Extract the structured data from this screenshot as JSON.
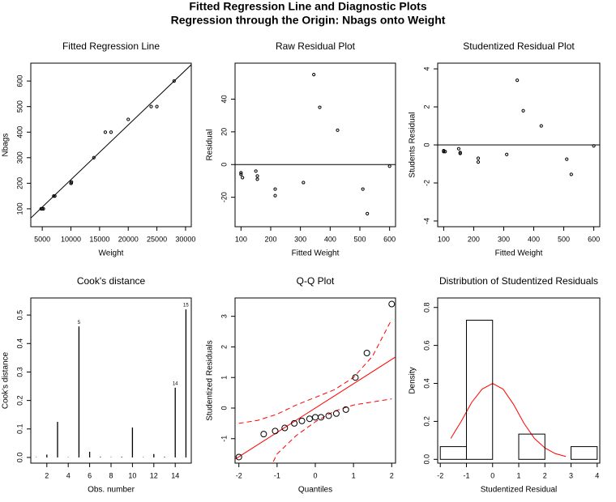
{
  "title": "Fitted Regression Line and Diagnostic Plots",
  "subtitle": "Regression through the Origin: Nbags onto Weight",
  "chart_data": [
    {
      "type": "scatter",
      "title": "Fitted Regression Line",
      "x_label": "Weight",
      "y_label": "Nbags",
      "marker": "point",
      "color": "#000000",
      "x": [
        5000,
        7200,
        10000,
        10100,
        14000,
        16000,
        17000,
        20000,
        24000,
        25000,
        28000,
        4800,
        7000,
        5200,
        10050
      ],
      "y": [
        100,
        150,
        200,
        205,
        300,
        400,
        400,
        450,
        500,
        500,
        600,
        100,
        150,
        100,
        200
      ],
      "lines": [
        {
          "x": [
            3000,
            31000
          ],
          "y": [
            64,
            664
          ],
          "color": "#000000",
          "dash": false
        }
      ],
      "xlim": [
        3000,
        31000
      ],
      "ylim": [
        30,
        670
      ],
      "xticks": [
        5000,
        10000,
        15000,
        20000,
        25000,
        30000
      ],
      "yticks": [
        100,
        200,
        300,
        400,
        500,
        600
      ]
    },
    {
      "type": "scatter",
      "title": "Raw Residual Plot",
      "x_label": "Fitted Weight",
      "y_label": "Residual",
      "marker": "point",
      "color": "#000000",
      "x": [
        100,
        105,
        150,
        155,
        155,
        215,
        215,
        310,
        345,
        365,
        425,
        510,
        525,
        600,
        100
      ],
      "y": [
        -5,
        -8,
        -4,
        -7,
        -9,
        -15,
        -19,
        -11,
        55,
        35,
        21,
        -15,
        -30,
        -1,
        -6
      ],
      "hline": 0,
      "xlim": [
        80,
        620
      ],
      "ylim": [
        -38,
        62
      ],
      "xticks": [
        100,
        200,
        300,
        400,
        500,
        600
      ],
      "yticks": [
        -20,
        0,
        20,
        40
      ]
    },
    {
      "type": "scatter",
      "title": "Studentized Residual Plot",
      "x_label": "Fitted Weight",
      "y_label": "Students Residual",
      "marker": "point",
      "color": "#000000",
      "x": [
        100,
        105,
        150,
        155,
        155,
        215,
        215,
        310,
        345,
        365,
        425,
        510,
        525,
        600,
        100
      ],
      "y": [
        -0.3,
        -0.35,
        -0.2,
        -0.4,
        -0.45,
        -0.7,
        -0.9,
        -0.5,
        3.4,
        1.8,
        1.0,
        -0.75,
        -1.55,
        -0.05,
        -0.35
      ],
      "hline": 0,
      "xlim": [
        80,
        620
      ],
      "ylim": [
        -4.3,
        4.3
      ],
      "xticks": [
        100,
        200,
        300,
        400,
        500,
        600
      ],
      "yticks": [
        -4,
        -2,
        0,
        2,
        4
      ]
    },
    {
      "type": "stem",
      "title": "Cook's distance",
      "x_label": "Obs. number",
      "y_label": "Cook's distance",
      "color": "#000000",
      "x": [
        1,
        2,
        3,
        4,
        5,
        6,
        7,
        8,
        9,
        10,
        11,
        12,
        13,
        14,
        15
      ],
      "values": [
        0.001,
        0.01,
        0.125,
        0.001,
        0.46,
        0.02,
        0.002,
        0.001,
        0.002,
        0.105,
        0.001,
        0.012,
        0.002,
        0.245,
        0.52
      ],
      "point_labels": [
        null,
        null,
        null,
        null,
        "5",
        null,
        null,
        null,
        null,
        null,
        null,
        null,
        null,
        "14",
        "15"
      ],
      "xlim": [
        0.5,
        15.5
      ],
      "ylim": [
        -0.02,
        0.56
      ],
      "xticks": [
        2,
        4,
        6,
        8,
        10,
        12,
        14
      ],
      "yticks": [
        {
          "value": 0,
          "label": "0.0"
        },
        0.1,
        0.2,
        0.3,
        0.4,
        0.5
      ]
    },
    {
      "type": "scatter",
      "title": "Q-Q Plot",
      "x_label": "Quantiles",
      "y_label": "Studentized Residuals",
      "marker": "open-circle",
      "color": "#000000",
      "x": [
        -2,
        -1.35,
        -1.05,
        -0.8,
        -0.55,
        -0.35,
        -0.15,
        0,
        0.15,
        0.35,
        0.55,
        0.8,
        1.05,
        1.35,
        2
      ],
      "y": [
        -1.6,
        -0.85,
        -0.75,
        -0.65,
        -0.5,
        -0.42,
        -0.35,
        -0.3,
        -0.3,
        -0.25,
        -0.18,
        -0.05,
        1.0,
        1.8,
        3.4
      ],
      "lines": [
        {
          "x": [
            -2.2,
            2.2
          ],
          "y": [
            -1.75,
            1.75
          ],
          "color": "#ff0000",
          "dash": false
        },
        {
          "x": [
            -2,
            -1.5,
            -1,
            -0.5,
            0,
            0.5,
            1,
            1.5,
            2
          ],
          "y": [
            -0.5,
            -0.4,
            -0.2,
            0.1,
            0.35,
            0.6,
            1.0,
            1.7,
            2.9
          ],
          "color": "#ff0000",
          "dash": true
        },
        {
          "x": [
            -1.1,
            -1,
            -0.5,
            0,
            0.5,
            1,
            1.5,
            2
          ],
          "y": [
            -1.75,
            -1.5,
            -0.9,
            -0.45,
            -0.1,
            0.1,
            0.2,
            0.3
          ],
          "color": "#ff0000",
          "dash": true
        }
      ],
      "xlim": [
        -2.1,
        2.1
      ],
      "ylim": [
        -1.8,
        3.6
      ],
      "xticks": [
        -2,
        -1,
        0,
        1,
        2
      ],
      "yticks": [
        -1,
        0,
        1,
        2,
        3
      ]
    },
    {
      "type": "histogram",
      "title": "Distribution of Studentized Residuals",
      "x_label": "Studentized Residual",
      "y_label": "Density",
      "color": "#000000",
      "bins": [
        -2,
        -1,
        0,
        1,
        2,
        3,
        4
      ],
      "values": [
        0.067,
        0.733,
        0,
        0.133,
        0,
        0.067
      ],
      "lines": [
        {
          "x": [
            -1.6,
            -1.2,
            -0.8,
            -0.4,
            0,
            0.4,
            0.8,
            1.2,
            1.6,
            2,
            2.4,
            2.8
          ],
          "y": [
            0.11,
            0.2,
            0.3,
            0.37,
            0.4,
            0.37,
            0.29,
            0.19,
            0.11,
            0.06,
            0.03,
            0.015
          ],
          "color": "#ff0000",
          "dash": false
        }
      ],
      "xlim": [
        -2.1,
        4.1
      ],
      "ylim": [
        -0.02,
        0.85
      ],
      "xticks": [
        -2,
        -1,
        0,
        1,
        2,
        3,
        4
      ],
      "yticks": [
        {
          "value": 0,
          "label": "0.0"
        },
        0.2,
        0.4,
        0.6,
        0.8
      ]
    }
  ]
}
